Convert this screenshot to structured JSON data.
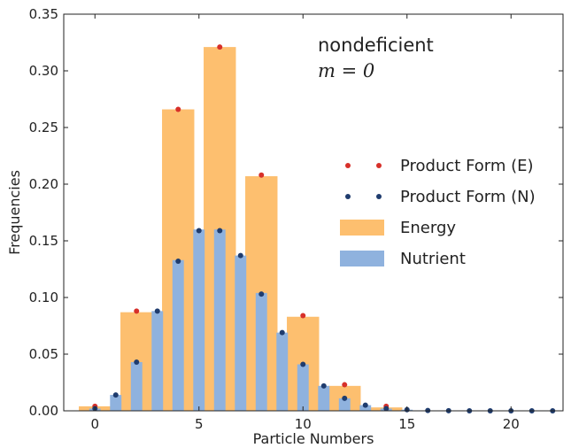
{
  "chart_data": {
    "type": "bar",
    "xlabel": "Particle Numbers",
    "ylabel": "Frequencies",
    "xlim": [
      -1.5,
      22.5
    ],
    "ylim": [
      0,
      0.35
    ],
    "xticks": [
      0,
      5,
      10,
      15,
      20
    ],
    "xtick_labels": [
      "0",
      "5",
      "10",
      "15",
      "20"
    ],
    "yticks": [
      0.0,
      0.05,
      0.1,
      0.15,
      0.2,
      0.25,
      0.3,
      0.35
    ],
    "ytick_labels": [
      "0.00",
      "0.05",
      "0.10",
      "0.15",
      "0.20",
      "0.25",
      "0.30",
      "0.35"
    ],
    "grid": false,
    "legend_position": "right",
    "annotation": {
      "line1": "nondeficient",
      "line2": "m = 0"
    },
    "colors": {
      "energy_bar": "#fdbf6f",
      "nutrient_bar": "#8fb2de",
      "product_e_dot": "#d7302a",
      "product_n_dot": "#1f3c6e"
    },
    "series": [
      {
        "name": "Energy",
        "kind": "bar",
        "x": [
          0,
          2,
          4,
          6,
          8,
          10,
          12,
          14
        ],
        "values": [
          0.004,
          0.087,
          0.266,
          0.321,
          0.207,
          0.083,
          0.022,
          0.003
        ]
      },
      {
        "name": "Nutrient",
        "kind": "bar",
        "x": [
          0,
          1,
          2,
          3,
          4,
          5,
          6,
          7,
          8,
          9,
          10,
          11,
          12,
          13,
          14,
          15,
          16,
          17,
          18,
          19,
          20,
          21,
          22
        ],
        "values": [
          0.002,
          0.014,
          0.043,
          0.088,
          0.133,
          0.16,
          0.16,
          0.137,
          0.104,
          0.069,
          0.041,
          0.022,
          0.011,
          0.005,
          0.002,
          0.001,
          0.0,
          0.0,
          0.0,
          0.0,
          0.0,
          0.0,
          0.0
        ]
      },
      {
        "name": "Product Form (E)",
        "kind": "points",
        "x": [
          0,
          2,
          4,
          6,
          8,
          10,
          12,
          14
        ],
        "values": [
          0.004,
          0.088,
          0.266,
          0.321,
          0.208,
          0.084,
          0.023,
          0.004
        ]
      },
      {
        "name": "Product Form (N)",
        "kind": "points",
        "x": [
          0,
          1,
          2,
          3,
          4,
          5,
          6,
          7,
          8,
          9,
          10,
          11,
          12,
          13,
          14,
          15,
          16,
          17,
          18,
          19,
          20,
          21,
          22
        ],
        "values": [
          0.002,
          0.014,
          0.043,
          0.088,
          0.132,
          0.159,
          0.159,
          0.137,
          0.103,
          0.069,
          0.041,
          0.022,
          0.011,
          0.005,
          0.002,
          0.001,
          0.0003,
          0.0001,
          0.0,
          0.0,
          0.0,
          0.0,
          0.0
        ]
      }
    ],
    "legend": [
      {
        "label": "Product Form (E)",
        "marker": "dots",
        "color": "#d7302a"
      },
      {
        "label": "Product Form (N)",
        "marker": "dots",
        "color": "#1f3c6e"
      },
      {
        "label": "Energy",
        "marker": "patch",
        "color": "#fdbf6f"
      },
      {
        "label": "Nutrient",
        "marker": "patch",
        "color": "#8fb2de"
      }
    ]
  }
}
